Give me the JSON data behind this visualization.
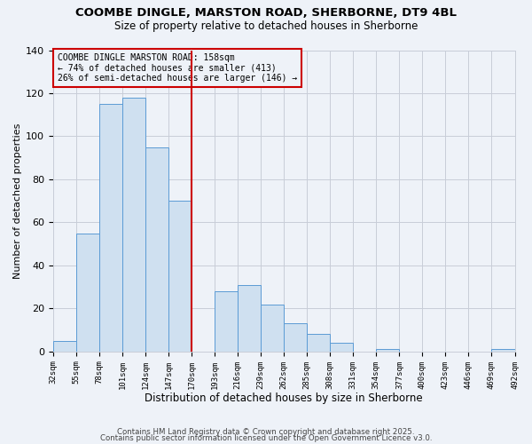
{
  "title": "COOMBE DINGLE, MARSTON ROAD, SHERBORNE, DT9 4BL",
  "subtitle": "Size of property relative to detached houses in Sherborne",
  "xlabel": "Distribution of detached houses by size in Sherborne",
  "ylabel": "Number of detached properties",
  "bar_values": [
    5,
    55,
    115,
    118,
    95,
    70,
    0,
    28,
    31,
    22,
    13,
    8,
    4,
    0,
    1,
    0,
    0,
    0,
    0,
    1
  ],
  "bar_labels": [
    "32sqm",
    "55sqm",
    "78sqm",
    "101sqm",
    "124sqm",
    "147sqm",
    "170sqm",
    "193sqm",
    "216sqm",
    "239sqm",
    "262sqm",
    "285sqm",
    "308sqm",
    "331sqm",
    "354sqm",
    "377sqm",
    "400sqm",
    "423sqm",
    "446sqm",
    "469sqm",
    "492sqm"
  ],
  "bar_color": "#cfe0f0",
  "bar_edge_color": "#5b9bd5",
  "vline_color": "#cc0000",
  "annotation_text": "COOMBE DINGLE MARSTON ROAD: 158sqm\n← 74% of detached houses are smaller (413)\n26% of semi-detached houses are larger (146) →",
  "annotation_box_edgecolor": "#cc0000",
  "ylim": [
    0,
    140
  ],
  "yticks": [
    0,
    20,
    40,
    60,
    80,
    100,
    120,
    140
  ],
  "footer_line1": "Contains HM Land Registry data © Crown copyright and database right 2025.",
  "footer_line2": "Contains public sector information licensed under the Open Government Licence v3.0.",
  "background_color": "#eef2f8",
  "grid_color": "#c8cdd8"
}
